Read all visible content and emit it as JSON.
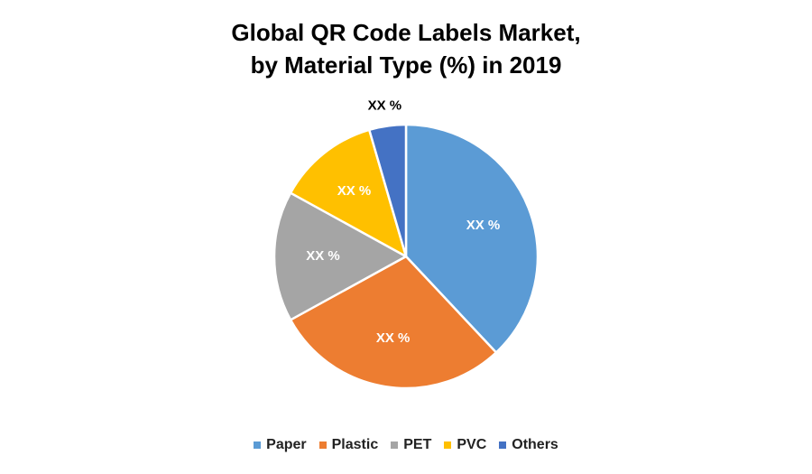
{
  "chart_data": {
    "type": "pie",
    "title_line1": "Global QR Code Labels Market,",
    "title_line2": "by Material Type (%) in 2019",
    "slices": [
      {
        "name": "Paper",
        "value": 38,
        "label": "XX %",
        "color": "#5B9BD5",
        "label_color": "#FFFFFF"
      },
      {
        "name": "Plastic",
        "value": 29,
        "label": "XX %",
        "color": "#ED7D31",
        "label_color": "#FFFFFF"
      },
      {
        "name": "PET",
        "value": 16,
        "label": "XX %",
        "color": "#A5A5A5",
        "label_color": "#FFFFFF"
      },
      {
        "name": "PVC",
        "value": 12.5,
        "label": "XX %",
        "color": "#FFC000",
        "label_color": "#FFFFFF"
      },
      {
        "name": "Others",
        "value": 4.5,
        "label": "XX %",
        "color": "#4472C4",
        "label_color": "#000000"
      }
    ],
    "legend_position": "bottom"
  }
}
